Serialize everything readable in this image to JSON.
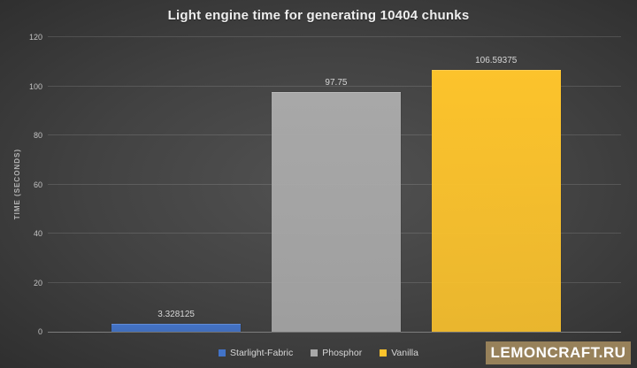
{
  "chart_data": {
    "type": "bar",
    "title": "Light engine time for generating 10404 chunks",
    "ylabel": "TIME (SECONDS)",
    "xlabel": "",
    "categories": [
      "Starlight-Fabric",
      "Phosphor",
      "Vanilla"
    ],
    "values": [
      3.328125,
      97.75,
      106.59375
    ],
    "value_labels": [
      "3.328125",
      "97.75",
      "106.59375"
    ],
    "colors": [
      "#4273c8",
      "#a8a8a8",
      "#fcc32c"
    ],
    "ylim": [
      0,
      120
    ],
    "yticks": [
      0,
      20,
      40,
      60,
      80,
      100,
      120
    ],
    "grid": true,
    "legend_position": "bottom",
    "background": "#3d3d3d"
  },
  "watermark": {
    "text": "LEMONCRAFT.RU",
    "bg": "#97815a",
    "fg": "#ffffff"
  }
}
